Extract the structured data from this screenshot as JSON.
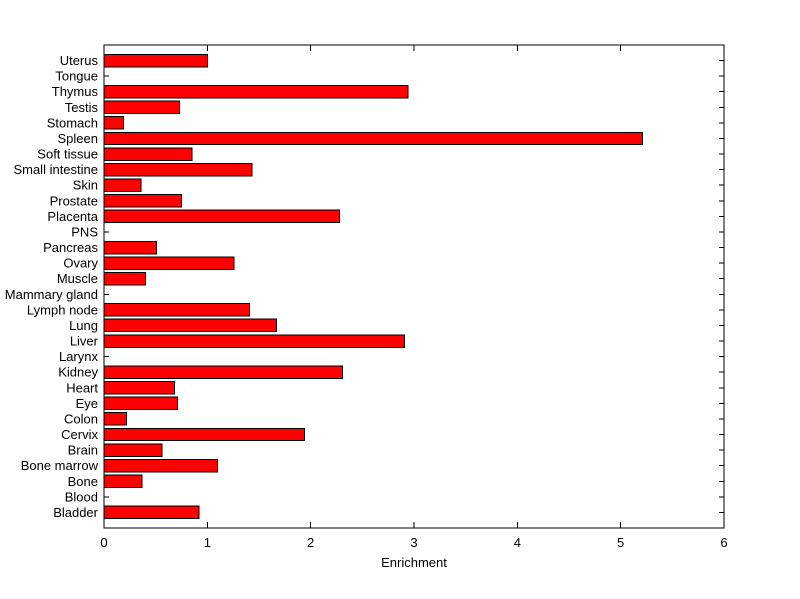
{
  "figure": {
    "background": "#ffffff"
  },
  "chart_data": {
    "type": "bar",
    "orientation": "horizontal",
    "title": "",
    "xlabel": "Enrichment",
    "ylabel": "",
    "xlim": [
      0,
      6
    ],
    "x_ticks": [
      0,
      1,
      2,
      3,
      4,
      5,
      6
    ],
    "grid": false,
    "legend_position": "none",
    "bar_color": "#ff0000",
    "bar_edge_color": "#000000",
    "axis_color": "#000000",
    "categories": [
      "Uterus",
      "Tongue",
      "Thymus",
      "Testis",
      "Stomach",
      "Spleen",
      "Soft tissue",
      "Small intestine",
      "Skin",
      "Prostate",
      "Placenta",
      "PNS",
      "Pancreas",
      "Ovary",
      "Muscle",
      "Mammary gland",
      "Lymph node",
      "Lung",
      "Liver",
      "Larynx",
      "Kidney",
      "Heart",
      "Eye",
      "Colon",
      "Cervix",
      "Brain",
      "Bone marrow",
      "Bone",
      "Blood",
      "Bladder"
    ],
    "values": [
      1.0,
      0,
      2.94,
      0.73,
      0.19,
      5.21,
      0.85,
      1.43,
      0.36,
      0.75,
      2.28,
      0,
      0.51,
      1.26,
      0.4,
      0,
      1.41,
      1.67,
      2.91,
      0,
      2.31,
      0.68,
      0.71,
      0.22,
      1.94,
      0.56,
      1.1,
      0.37,
      0,
      0.92
    ]
  }
}
